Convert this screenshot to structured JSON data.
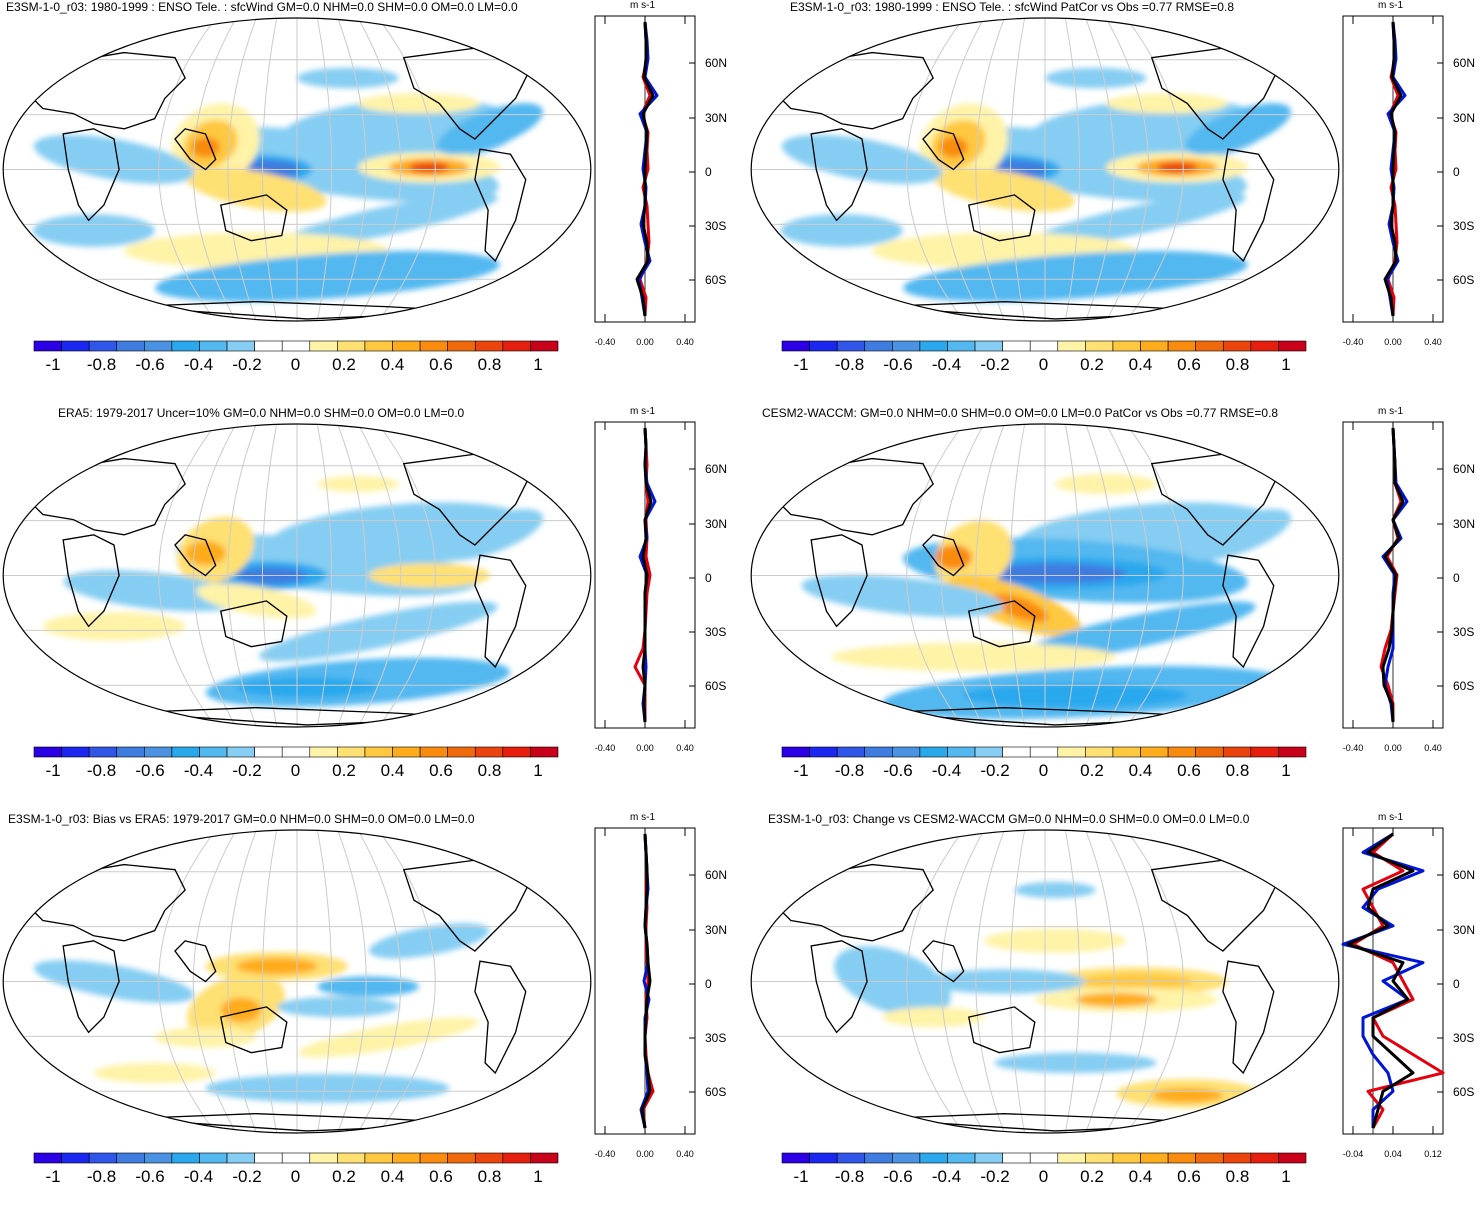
{
  "panels": [
    {
      "title": "E3SM-1-0_r03: 1980-1999 : ENSO Tele. : sfcWind GM=0.0 NHM=0.0 SHM=0.0 OM=0.0 LM=0.0",
      "profile_xticks": [
        "-0.40",
        "0.00",
        "0.40"
      ],
      "variant": "model"
    },
    {
      "title": "E3SM-1-0_r03: 1980-1999 : ENSO Tele. : sfcWind PatCor vs Obs =0.77 RMSE=0.8",
      "profile_xticks": [
        "-0.40",
        "0.00",
        "0.40"
      ],
      "variant": "model"
    },
    {
      "title": "ERA5: 1979-2017 Uncer=10% GM=0.0 NHM=0.0 SHM=0.0 OM=0.0 LM=0.0",
      "profile_xticks": [
        "-0.40",
        "0.00",
        "0.40"
      ],
      "variant": "obs"
    },
    {
      "title": "CESM2-WACCM: GM=0.0 NHM=0.0 SHM=0.0 OM=0.0 LM=0.0 PatCor vs Obs =0.77 RMSE=0.8",
      "profile_xticks": [
        "-0.40",
        "0.00",
        "0.40"
      ],
      "variant": "cesm"
    },
    {
      "title": "E3SM-1-0_r03: Bias vs ERA5: 1979-2017 GM=0.0 NHM=0.0 SHM=0.0 OM=0.0 LM=0.0",
      "profile_xticks": [
        "-0.40",
        "0.00",
        "0.40"
      ],
      "variant": "bias"
    },
    {
      "title": "E3SM-1-0_r03: Change vs CESM2-WACCM GM=0.0 NHM=0.0 SHM=0.0 OM=0.0 LM=0.0",
      "profile_xticks": [
        "-0.04",
        "0.04",
        "0.12"
      ],
      "variant": "change"
    }
  ],
  "units": "m s-1",
  "lat_labels": [
    "60N",
    "30N",
    "0",
    "30S",
    "60S"
  ],
  "colorbar": {
    "labels": [
      "-1",
      "-0.8",
      "-0.6",
      "-0.4",
      "-0.2",
      "0",
      "0.2",
      "0.4",
      "0.6",
      "0.8",
      "1"
    ],
    "colors": [
      "#2b00e6",
      "#1b27f0",
      "#2f56e8",
      "#3f7ce0",
      "#4a93e3",
      "#2aa8ee",
      "#52b8f0",
      "#85cdf2",
      "#ffffff",
      "#ffffff",
      "#fff3a8",
      "#ffe072",
      "#ffc83f",
      "#ffac1c",
      "#f98c0e",
      "#f06a0b",
      "#eb440c",
      "#e51e0d",
      "#c8001a"
    ]
  },
  "colors": {
    "blue_line": "#0015d6",
    "red_line": "#e5000f",
    "black_line": "#000000"
  }
}
